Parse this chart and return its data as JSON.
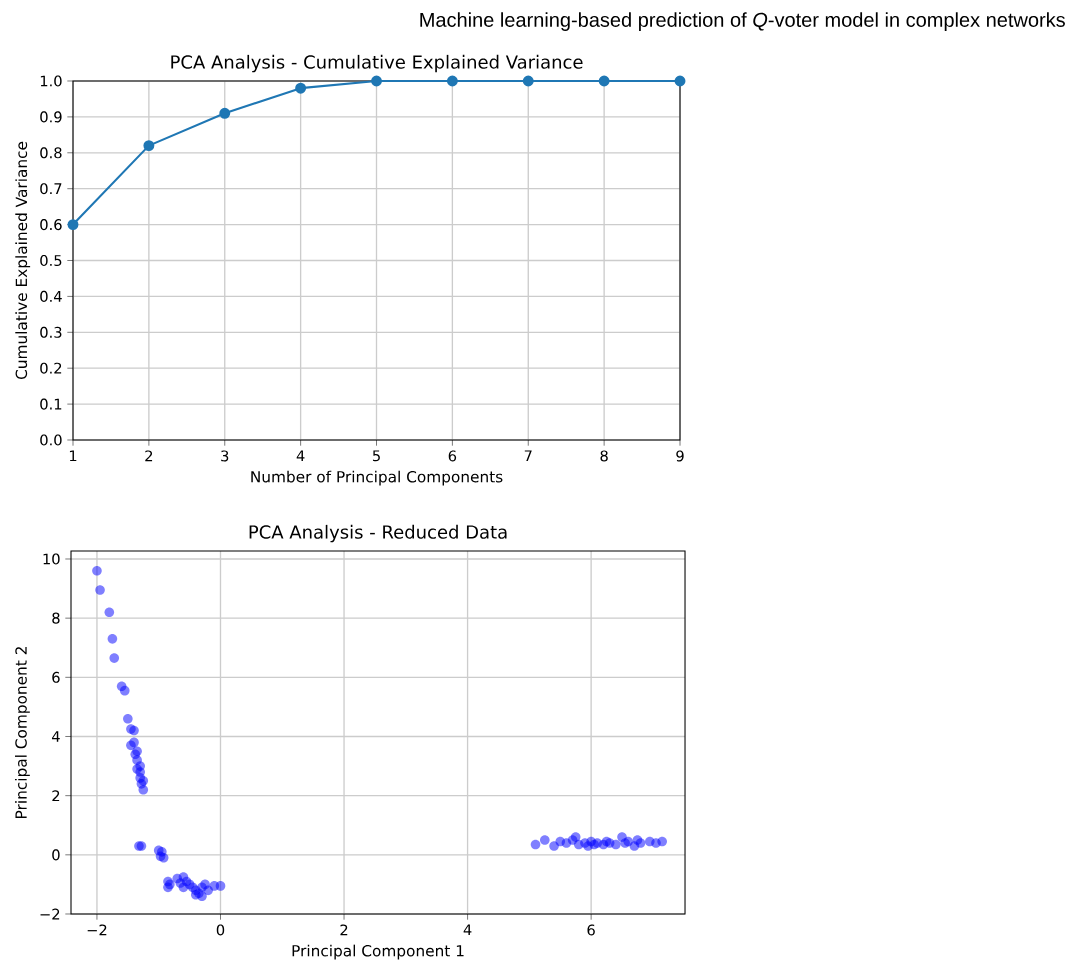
{
  "chart_data": [
    {
      "type": "line",
      "title": "PCA Analysis - Cumulative Explained Variance",
      "xlabel": "Number of Principal Components",
      "ylabel": "Cumulative Explained Variance",
      "annotations": [
        "Machine learning-based prediction of *Q*-voter model in complex networks"
      ],
      "x": [
        1,
        2,
        3,
        4,
        5,
        6,
        7,
        8,
        9
      ],
      "values": [
        0.6,
        0.82,
        0.91,
        0.98,
        1.0,
        1.0,
        1.0,
        1.0,
        1.0
      ],
      "color": "#1f77b4",
      "marker": "circle",
      "grid": true,
      "xlim": [
        1,
        9
      ],
      "xticks": [
        1,
        2,
        3,
        4,
        5,
        6,
        7,
        8,
        9
      ],
      "ylim": [
        0,
        1
      ],
      "yticks": [
        {
          "value": 0,
          "label": "0.0"
        },
        {
          "value": 0.1,
          "label": "0.1"
        },
        {
          "value": 0.2,
          "label": "0.2"
        },
        {
          "value": 0.3,
          "label": "0.3"
        },
        {
          "value": 0.4,
          "label": "0.4"
        },
        {
          "value": 0.5,
          "label": "0.5"
        },
        {
          "value": 0.6,
          "label": "0.6"
        },
        {
          "value": 0.7,
          "label": "0.7"
        },
        {
          "value": 0.8,
          "label": "0.8"
        },
        {
          "value": 0.9,
          "label": "0.9"
        },
        {
          "value": 1,
          "label": "1.0"
        }
      ]
    },
    {
      "type": "scatter",
      "title": "PCA Analysis - Reduced Data",
      "xlabel": "Principal Component 1",
      "ylabel": "Principal Component 2",
      "x": [
        -2.0,
        -1.95,
        -1.8,
        -1.75,
        -1.72,
        -1.6,
        -1.55,
        -1.5,
        -1.45,
        -1.4,
        -1.45,
        -1.4,
        -1.38,
        -1.35,
        -1.35,
        -1.3,
        -1.3,
        -1.28,
        -1.25,
        -1.25,
        -1.3,
        -1.35,
        -1.32,
        -1.28,
        -1.0,
        -0.95,
        -0.97,
        -0.92,
        -0.85,
        -0.82,
        -0.85,
        -0.7,
        -0.6,
        -0.55,
        -0.5,
        -0.45,
        -0.4,
        -0.35,
        -0.3,
        -0.25,
        -0.2,
        -0.1,
        -0.3,
        -0.4,
        -0.65,
        -0.6,
        0.0,
        5.1,
        5.25,
        5.4,
        5.5,
        5.6,
        5.7,
        5.75,
        5.8,
        5.9,
        6.0,
        6.05,
        6.1,
        6.2,
        6.3,
        6.4,
        6.5,
        6.55,
        6.6,
        6.7,
        6.8,
        6.95,
        7.05,
        7.15,
        5.95,
        6.25,
        6.75
      ],
      "values": [
        9.6,
        8.95,
        8.2,
        7.3,
        6.65,
        5.7,
        5.55,
        4.6,
        4.25,
        4.2,
        3.7,
        3.8,
        3.4,
        3.2,
        2.9,
        3.0,
        2.6,
        2.4,
        2.2,
        2.5,
        2.8,
        3.5,
        0.3,
        0.3,
        0.15,
        0.1,
        -0.05,
        -0.1,
        -0.9,
        -1.0,
        -1.1,
        -0.8,
        -0.75,
        -0.9,
        -1.0,
        -1.1,
        -1.2,
        -1.3,
        -1.1,
        -1.0,
        -1.2,
        -1.05,
        -1.4,
        -1.35,
        -0.95,
        -1.1,
        -1.05,
        0.35,
        0.5,
        0.3,
        0.45,
        0.4,
        0.5,
        0.6,
        0.35,
        0.4,
        0.45,
        0.35,
        0.4,
        0.35,
        0.4,
        0.35,
        0.6,
        0.4,
        0.45,
        0.3,
        0.4,
        0.45,
        0.4,
        0.45,
        0.3,
        0.45,
        0.5
      ],
      "color": "#0000ff",
      "marker": "circle",
      "grid": true,
      "xlim": [
        -2.42,
        7.52
      ],
      "xticks": [
        {
          "value": -2,
          "label": "−2"
        },
        0,
        2,
        4,
        6
      ],
      "ylim": [
        -2,
        10.27
      ],
      "yticks": [
        {
          "value": -2,
          "label": "−2"
        },
        0,
        2,
        4,
        6,
        8,
        10
      ]
    }
  ]
}
